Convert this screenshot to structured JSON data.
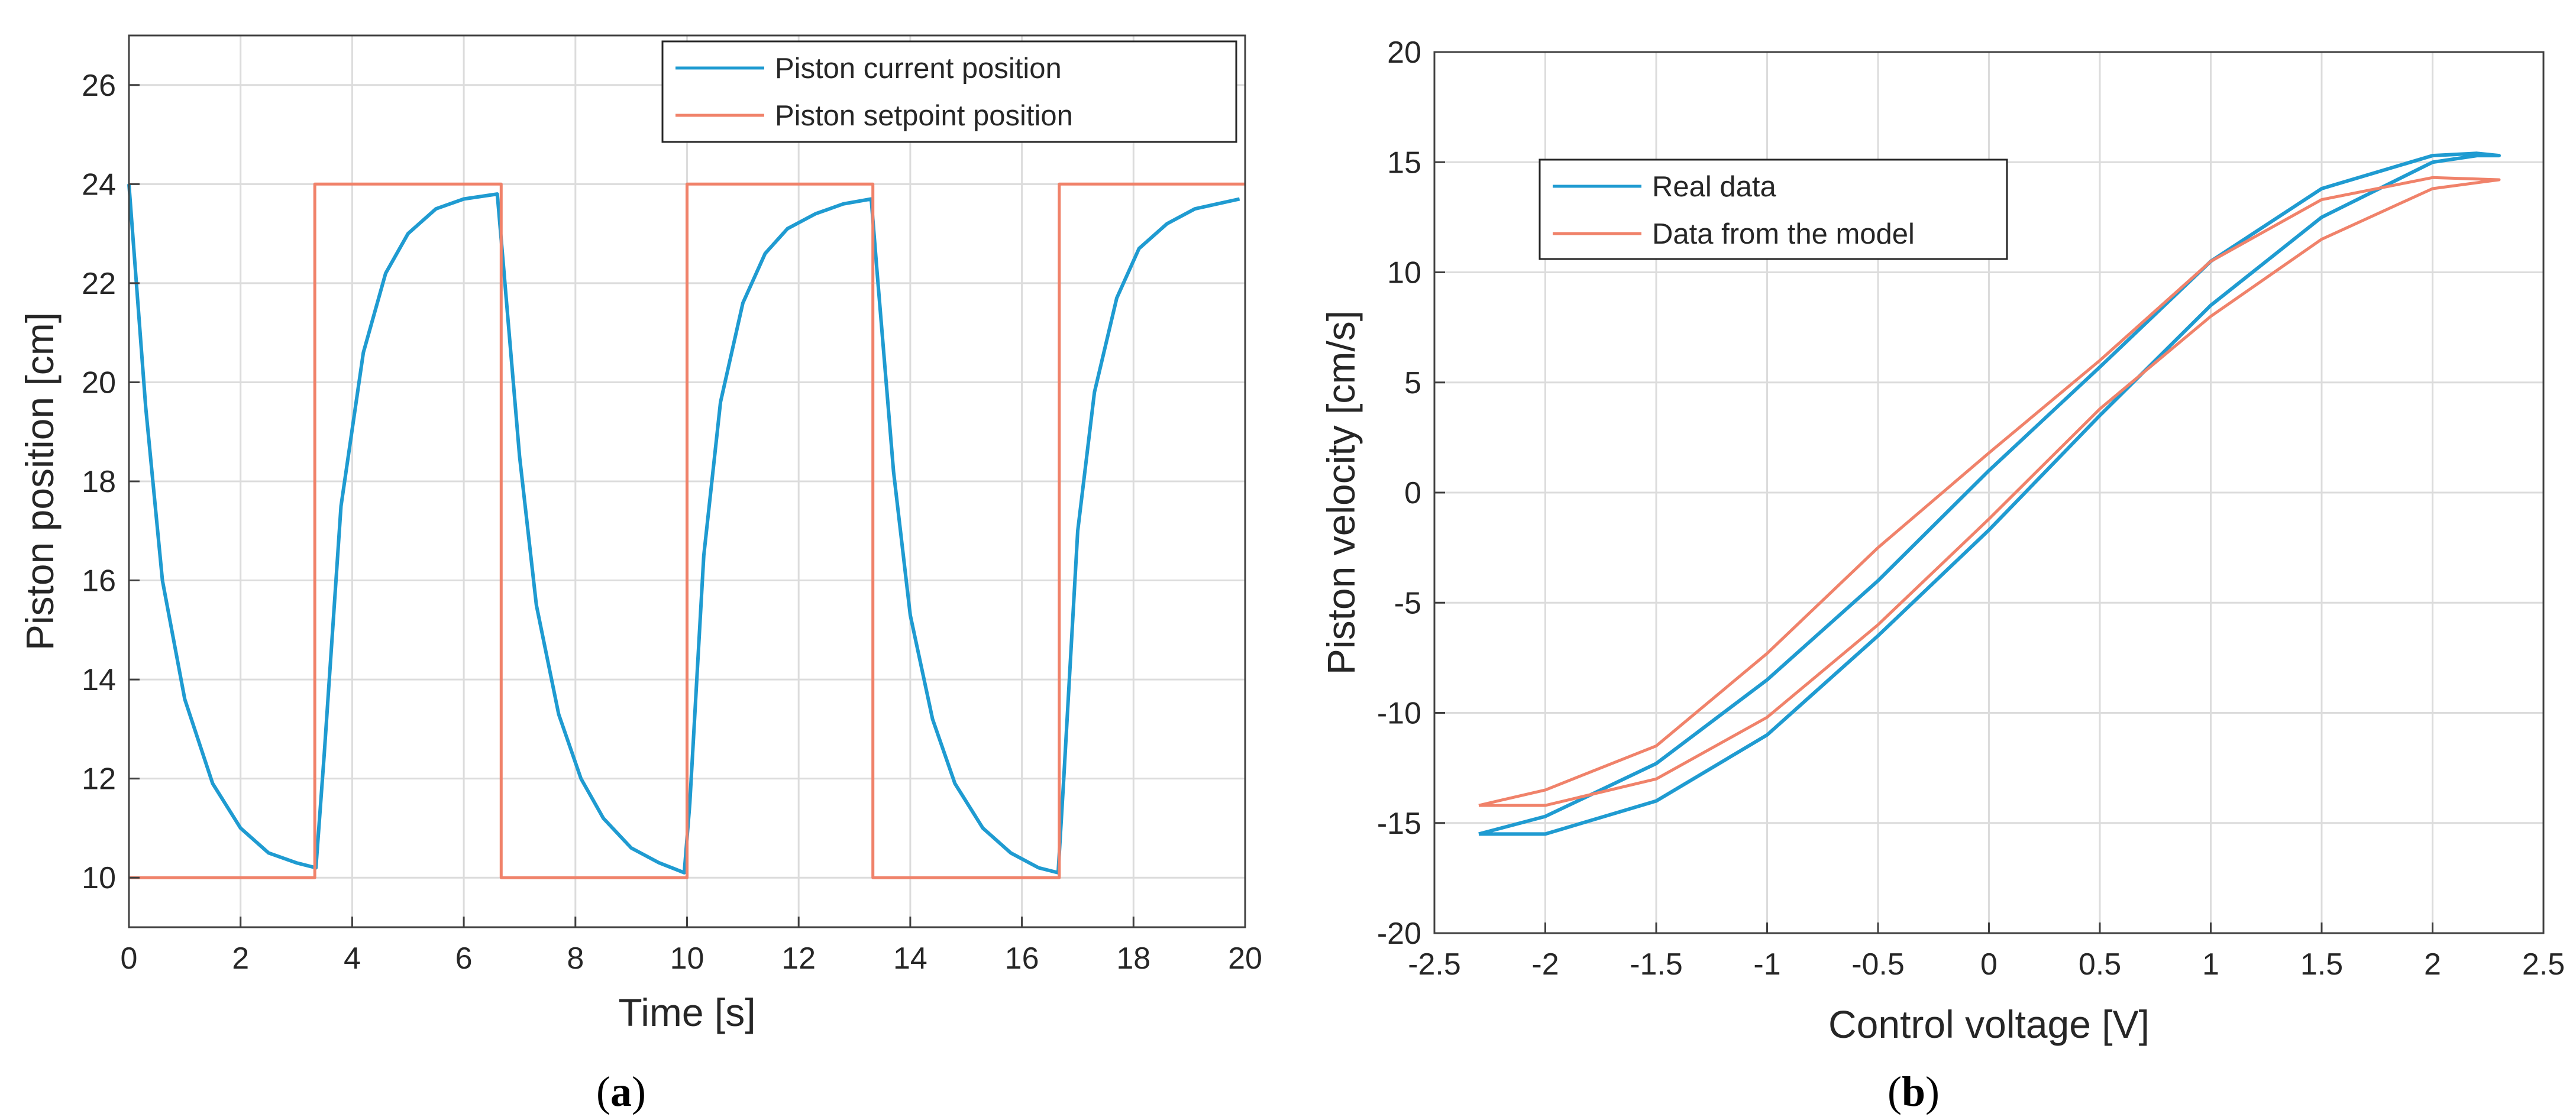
{
  "chart_data": [
    {
      "type": "line",
      "panel": "a",
      "caption_letter": "a",
      "xlabel": "Time [s]",
      "ylabel": "Piston position [cm]",
      "xlim": [
        0,
        20
      ],
      "ylim": [
        9,
        27
      ],
      "xticks": [
        0,
        2,
        4,
        6,
        8,
        10,
        12,
        14,
        16,
        18,
        20
      ],
      "yticks": [
        10,
        12,
        14,
        16,
        18,
        20,
        22,
        24,
        26
      ],
      "grid": true,
      "legend_position": "top-right",
      "series": [
        {
          "name": "Piston current position",
          "color": "#1f9bd1",
          "x": [
            0,
            0.3,
            0.6,
            1.0,
            1.5,
            2.0,
            2.5,
            3.0,
            3.35,
            3.5,
            3.8,
            4.2,
            4.6,
            5.0,
            5.5,
            6.0,
            6.6,
            6.7,
            7.0,
            7.3,
            7.7,
            8.1,
            8.5,
            9.0,
            9.5,
            9.95,
            10.05,
            10.3,
            10.6,
            11.0,
            11.4,
            11.8,
            12.3,
            12.8,
            13.3,
            13.4,
            13.7,
            14.0,
            14.4,
            14.8,
            15.3,
            15.8,
            16.3,
            16.65,
            16.75,
            17.0,
            17.3,
            17.7,
            18.1,
            18.6,
            19.1,
            19.5,
            19.9
          ],
          "y": [
            24.0,
            19.5,
            16.0,
            13.6,
            11.9,
            11.0,
            10.5,
            10.3,
            10.2,
            12.5,
            17.5,
            20.6,
            22.2,
            23.0,
            23.5,
            23.7,
            23.8,
            22.5,
            18.5,
            15.5,
            13.3,
            12.0,
            11.2,
            10.6,
            10.3,
            10.1,
            11.5,
            16.5,
            19.6,
            21.6,
            22.6,
            23.1,
            23.4,
            23.6,
            23.7,
            22.3,
            18.2,
            15.3,
            13.2,
            11.9,
            11.0,
            10.5,
            10.2,
            10.1,
            12.0,
            17.0,
            19.8,
            21.7,
            22.7,
            23.2,
            23.5,
            23.6,
            23.7
          ]
        },
        {
          "name": "Piston setpoint position",
          "color": "#f0826a",
          "x": [
            0,
            3.33,
            3.33,
            6.67,
            6.67,
            10.0,
            10.0,
            13.33,
            13.33,
            16.67,
            16.67,
            20.0
          ],
          "y": [
            10,
            10,
            24,
            24,
            10,
            10,
            24,
            24,
            10,
            10,
            24,
            24
          ]
        }
      ]
    },
    {
      "type": "line",
      "panel": "b",
      "caption_letter": "b",
      "xlabel": "Control voltage [V]",
      "ylabel": "Piston velocity [cm/s]",
      "xlim": [
        -2.5,
        2.5
      ],
      "ylim": [
        -20,
        20
      ],
      "xticks": [
        -2.5,
        -2,
        -1.5,
        -1,
        -0.5,
        0,
        0.5,
        1,
        1.5,
        2,
        2.5
      ],
      "yticks": [
        -20,
        -15,
        -10,
        -5,
        0,
        5,
        10,
        15,
        20
      ],
      "grid": true,
      "legend_position": "top-left",
      "series": [
        {
          "name": "Real data",
          "color": "#1f9bd1",
          "x": [
            -2.3,
            -2.0,
            -1.5,
            -1.0,
            -0.5,
            0.0,
            0.5,
            1.0,
            1.5,
            2.0,
            2.2,
            2.3,
            2.2,
            2.0,
            1.5,
            1.0,
            0.5,
            0.0,
            -0.5,
            -1.0,
            -1.5,
            -2.0,
            -2.3
          ],
          "y": [
            -15.5,
            -15.5,
            -14.0,
            -11.0,
            -6.5,
            -1.7,
            3.5,
            8.5,
            12.5,
            15.0,
            15.3,
            15.3,
            15.4,
            15.3,
            13.8,
            10.5,
            5.7,
            1.0,
            -4.0,
            -8.5,
            -12.3,
            -14.7,
            -15.5
          ]
        },
        {
          "name": "Data from the model",
          "color": "#f0826a",
          "x": [
            -2.3,
            -2.0,
            -1.5,
            -1.0,
            -0.5,
            0.0,
            0.5,
            1.0,
            1.5,
            2.0,
            2.3,
            2.0,
            1.5,
            1.0,
            0.5,
            0.0,
            -0.5,
            -1.0,
            -1.5,
            -2.0,
            -2.3
          ],
          "y": [
            -14.2,
            -14.2,
            -13.0,
            -10.2,
            -6.0,
            -1.2,
            3.8,
            8.0,
            11.5,
            13.8,
            14.2,
            14.3,
            13.3,
            10.5,
            6.0,
            1.8,
            -2.5,
            -7.3,
            -11.5,
            -13.5,
            -14.2
          ]
        }
      ]
    }
  ]
}
